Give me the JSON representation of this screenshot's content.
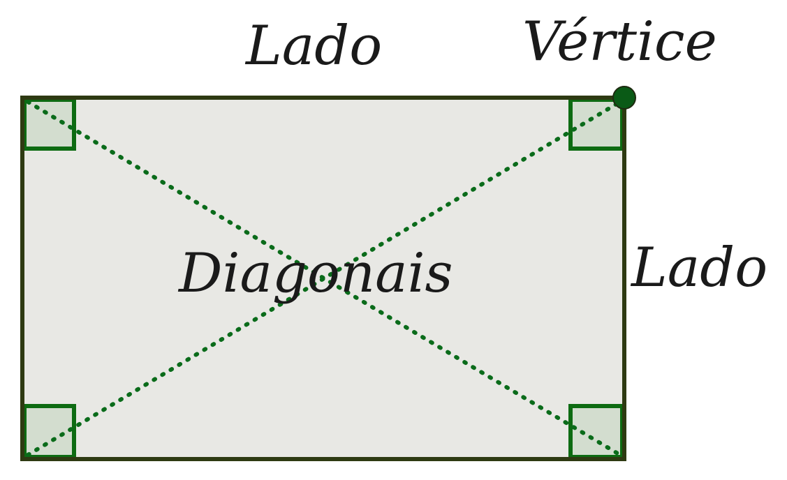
{
  "labels": {
    "top_side": "Lado",
    "vertex": "Vértice",
    "right_side": "Lado",
    "diagonals": "Diagonais"
  },
  "colors": {
    "fill": "#e8e8e4",
    "outline": "#2e3a12",
    "diagonal": "#0a6b1a",
    "right_angle_stroke": "#0d6b12",
    "right_angle_fill": "#d3ddcf",
    "vertex_point": "#0a5a16",
    "text": "#1a1a1a"
  }
}
